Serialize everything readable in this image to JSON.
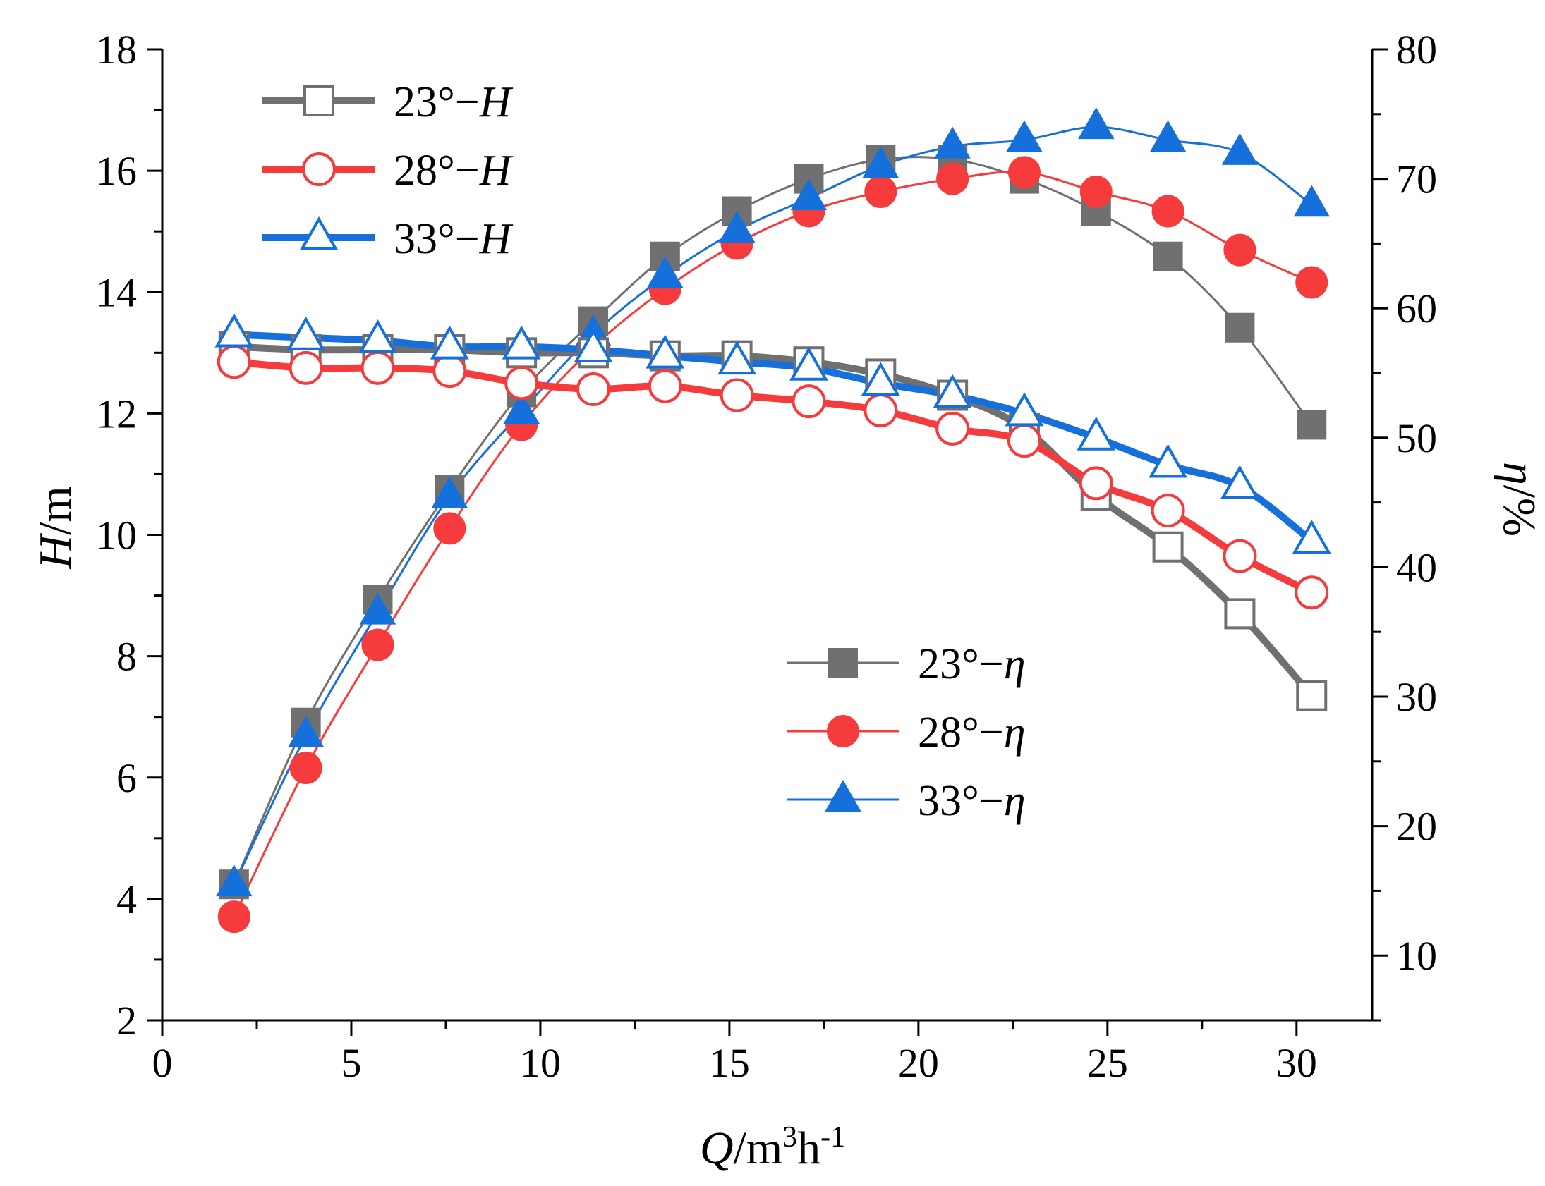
{
  "chart_data": {
    "type": "line",
    "x_axis": {
      "label_var": "Q",
      "label_unit_base": "/m",
      "label_sup": "3",
      "label_unit_mid": "h",
      "label_sup2": "-1",
      "range": [
        0,
        32
      ],
      "ticks": [
        0,
        5,
        10,
        15,
        20,
        25,
        30
      ],
      "tick_labels": [
        "0",
        "5",
        "10",
        "15",
        "20",
        "25",
        "30"
      ],
      "minor_step": 2.5
    },
    "y_left": {
      "label_var": "H",
      "label_unit": "/m",
      "range": [
        2,
        18
      ],
      "ticks": [
        2,
        4,
        6,
        8,
        10,
        12,
        14,
        16,
        18
      ],
      "tick_labels": [
        "2",
        "4",
        "6",
        "8",
        "10",
        "12",
        "14",
        "16",
        "18"
      ],
      "minor_step": 1
    },
    "y_right": {
      "label_var": "η",
      "label_unit": "/%",
      "range": [
        5,
        80
      ],
      "ticks": [
        10,
        20,
        30,
        40,
        50,
        60,
        70,
        80
      ],
      "tick_labels": [
        "10",
        "20",
        "30",
        "40",
        "50",
        "60",
        "70",
        "80"
      ],
      "minor_step": 5
    },
    "x": [
      1.9,
      3.8,
      5.7,
      7.6,
      9.5,
      11.4,
      13.3,
      15.2,
      17.1,
      19.0,
      20.9,
      22.8,
      24.7,
      26.6,
      28.5,
      30.4
    ],
    "series": [
      {
        "name": "23°−H",
        "legend_prefix": "23°−",
        "legend_var": "H",
        "axis": "left",
        "color": "#707070",
        "marker": "square-open",
        "line_width": 10,
        "values": [
          13.1,
          13.05,
          13.05,
          13.05,
          13.0,
          13.0,
          12.95,
          12.95,
          12.85,
          12.65,
          12.3,
          11.75,
          10.65,
          9.8,
          8.7,
          7.35
        ]
      },
      {
        "name": "28°−H",
        "legend_prefix": "28°−",
        "legend_var": "H",
        "axis": "left",
        "color": "#f53b3b",
        "marker": "circle-open",
        "line_width": 10,
        "values": [
          12.85,
          12.75,
          12.75,
          12.7,
          12.5,
          12.4,
          12.45,
          12.3,
          12.2,
          12.05,
          11.75,
          11.55,
          10.85,
          10.4,
          9.65,
          9.05
        ]
      },
      {
        "name": "33°−H",
        "legend_prefix": "33°−",
        "legend_var": "H",
        "axis": "left",
        "color": "#1670dc",
        "marker": "triangle-open",
        "line_width": 10,
        "values": [
          13.3,
          13.25,
          13.2,
          13.1,
          13.1,
          13.05,
          12.95,
          12.85,
          12.75,
          12.5,
          12.3,
          12.0,
          11.6,
          11.15,
          10.8,
          9.9
        ]
      },
      {
        "name": "23°−η",
        "legend_prefix": "23°−",
        "legend_var": "η",
        "axis": "right",
        "color": "#707070",
        "marker": "square-filled",
        "line_width": 3,
        "values": [
          15.5,
          28.0,
          37.5,
          46.0,
          53.5,
          59.0,
          64.0,
          67.5,
          70.0,
          71.5,
          71.5,
          70.0,
          67.5,
          64.0,
          58.5,
          51.0
        ]
      },
      {
        "name": "28°−η",
        "legend_prefix": "28°−",
        "legend_var": "η",
        "axis": "right",
        "color": "#f53b3b",
        "marker": "circle-filled",
        "line_width": 3,
        "values": [
          13.0,
          24.5,
          34.0,
          43.0,
          51.0,
          57.0,
          61.5,
          65.0,
          67.5,
          69.0,
          70.0,
          70.5,
          69.0,
          67.5,
          64.5,
          62.0
        ]
      },
      {
        "name": "33°−η",
        "legend_prefix": "33°−",
        "legend_var": "η",
        "axis": "right",
        "color": "#1670dc",
        "marker": "triangle-filled",
        "line_width": 3,
        "values": [
          15.5,
          27.0,
          36.5,
          45.5,
          52.0,
          58.0,
          62.5,
          66.0,
          68.5,
          71.0,
          72.5,
          73.0,
          74.0,
          73.0,
          72.0,
          68.0
        ]
      }
    ],
    "legends": [
      {
        "placement": "top-left",
        "series": [
          0,
          1,
          2
        ]
      },
      {
        "placement": "center-right",
        "series": [
          3,
          4,
          5
        ]
      }
    ]
  }
}
